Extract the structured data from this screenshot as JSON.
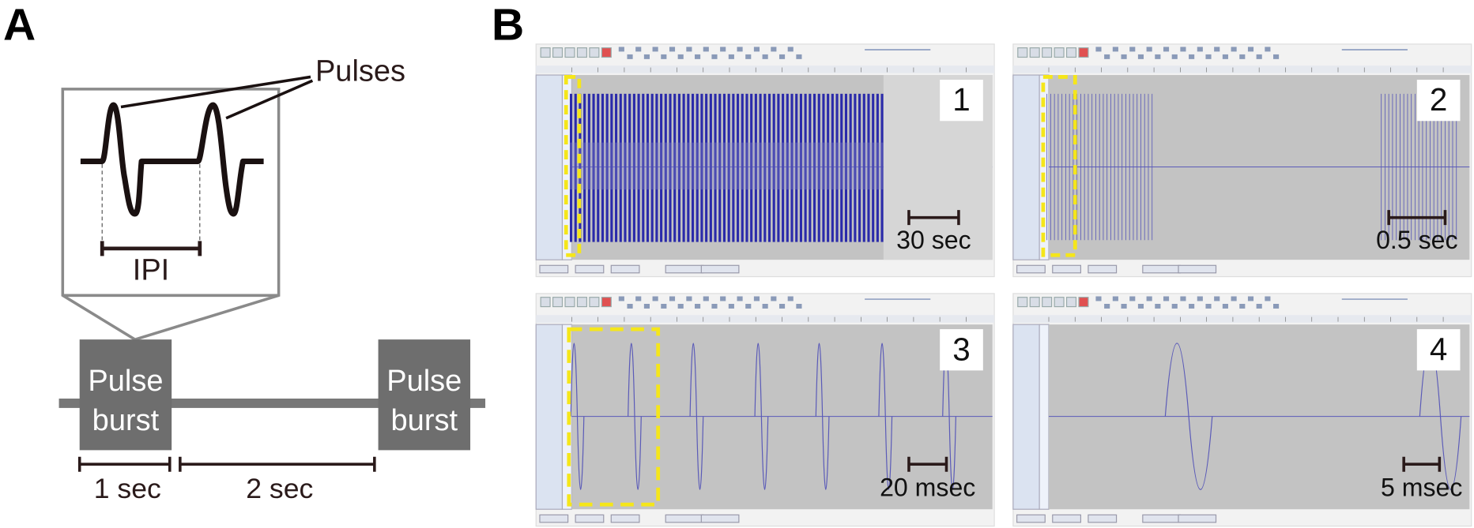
{
  "panel_a": {
    "letter": "A",
    "pulses_label": "Pulses",
    "ipi_label": "IPI",
    "bursts": [
      {
        "lines": [
          "Pulse",
          "burst"
        ]
      },
      {
        "lines": [
          "Pulse",
          "burst"
        ]
      }
    ],
    "intervals": [
      "1 sec",
      "2 sec"
    ]
  },
  "panel_b": {
    "letter": "B",
    "screens": [
      {
        "number": "1",
        "scale": "30 sec"
      },
      {
        "number": "2",
        "scale": "0.5 sec"
      },
      {
        "number": "3",
        "scale": "20 msec"
      },
      {
        "number": "4",
        "scale": "5 msec"
      }
    ]
  }
}
